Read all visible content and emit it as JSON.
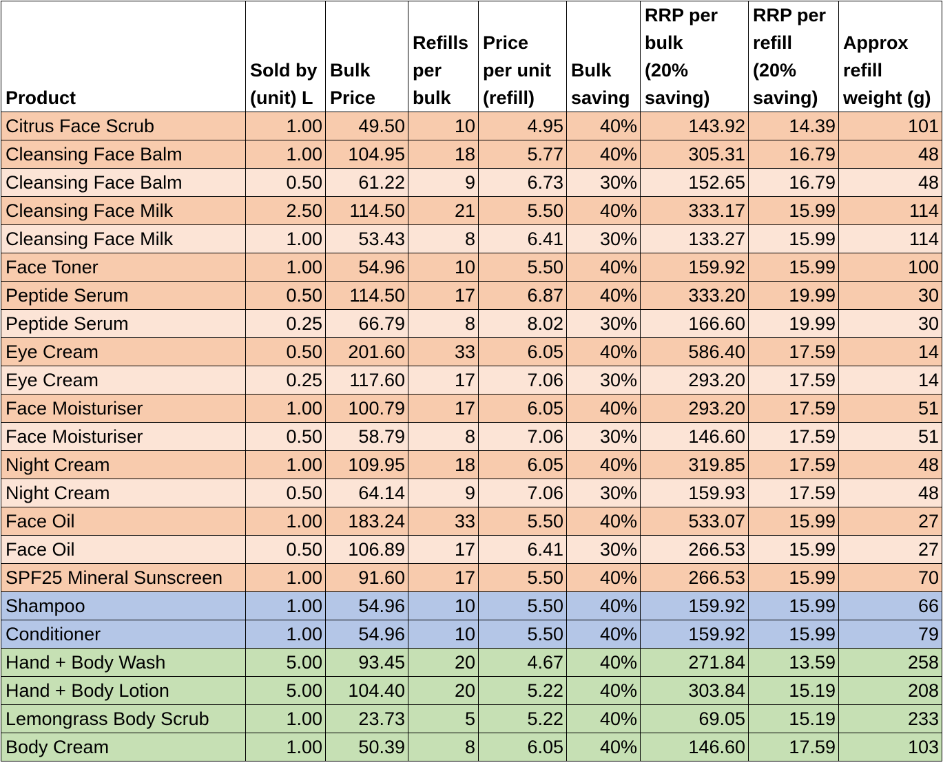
{
  "table": {
    "header": [
      "Product",
      "Sold by\n(unit) L",
      "Bulk\nPrice",
      "Refills\nper\nbulk",
      "Price\nper unit\n(refill)",
      "Bulk\nsaving",
      "RRP per\nbulk\n(20%\nsaving)",
      "RRP per\nrefill\n(20%\nsaving)",
      "Approx\nrefill\nweight (g)"
    ],
    "rows": [
      [
        "Citrus Face Scrub",
        "1.00",
        "49.50",
        "10",
        "4.95",
        "40%",
        "143.92",
        "14.39",
        "101"
      ],
      [
        "Cleansing Face Balm",
        "1.00",
        "104.95",
        "18",
        "5.77",
        "40%",
        "305.31",
        "16.79",
        "48"
      ],
      [
        "Cleansing Face Balm",
        "0.50",
        "61.22",
        "9",
        "6.73",
        "30%",
        "152.65",
        "16.79",
        "48"
      ],
      [
        "Cleansing Face Milk",
        "2.50",
        "114.50",
        "21",
        "5.50",
        "40%",
        "333.17",
        "15.99",
        "114"
      ],
      [
        "Cleansing Face Milk",
        "1.00",
        "53.43",
        "8",
        "6.41",
        "30%",
        "133.27",
        "15.99",
        "114"
      ],
      [
        "Face Toner",
        "1.00",
        "54.96",
        "10",
        "5.50",
        "40%",
        "159.92",
        "15.99",
        "100"
      ],
      [
        "Peptide Serum",
        "0.50",
        "114.50",
        "17",
        "6.87",
        "40%",
        "333.20",
        "19.99",
        "30"
      ],
      [
        "Peptide Serum",
        "0.25",
        "66.79",
        "8",
        "8.02",
        "30%",
        "166.60",
        "19.99",
        "30"
      ],
      [
        "Eye Cream",
        "0.50",
        "201.60",
        "33",
        "6.05",
        "40%",
        "586.40",
        "17.59",
        "14"
      ],
      [
        "Eye Cream",
        "0.25",
        "117.60",
        "17",
        "7.06",
        "30%",
        "293.20",
        "17.59",
        "14"
      ],
      [
        "Face Moisturiser",
        "1.00",
        "100.79",
        "17",
        "6.05",
        "40%",
        "293.20",
        "17.59",
        "51"
      ],
      [
        "Face Moisturiser",
        "0.50",
        "58.79",
        "8",
        "7.06",
        "30%",
        "146.60",
        "17.59",
        "51"
      ],
      [
        "Night Cream",
        "1.00",
        "109.95",
        "18",
        "6.05",
        "40%",
        "319.85",
        "17.59",
        "48"
      ],
      [
        "Night Cream",
        "0.50",
        "64.14",
        "9",
        "7.06",
        "30%",
        "159.93",
        "17.59",
        "48"
      ],
      [
        "Face Oil",
        "1.00",
        "183.24",
        "33",
        "5.50",
        "40%",
        "533.07",
        "15.99",
        "27"
      ],
      [
        "Face Oil",
        "0.50",
        "106.89",
        "17",
        "6.41",
        "30%",
        "266.53",
        "15.99",
        "27"
      ],
      [
        "SPF25 Mineral Sunscreen",
        "1.00",
        "91.60",
        "17",
        "5.50",
        "40%",
        "266.53",
        "15.99",
        "70"
      ],
      [
        "Shampoo",
        "1.00",
        "54.96",
        "10",
        "5.50",
        "40%",
        "159.92",
        "15.99",
        "66"
      ],
      [
        "Conditioner",
        "1.00",
        "54.96",
        "10",
        "5.50",
        "40%",
        "159.92",
        "15.99",
        "79"
      ],
      [
        "Hand + Body Wash",
        "5.00",
        "93.45",
        "20",
        "4.67",
        "40%",
        "271.84",
        "13.59",
        "258"
      ],
      [
        "Hand + Body Lotion",
        "5.00",
        "104.40",
        "20",
        "5.22",
        "40%",
        "303.84",
        "15.19",
        "208"
      ],
      [
        "Lemongrass Body Scrub",
        "1.00",
        "23.73",
        "5",
        "5.22",
        "40%",
        "69.05",
        "15.19",
        "233"
      ],
      [
        "Body Cream",
        "1.00",
        "50.39",
        "8",
        "6.05",
        "40%",
        "146.60",
        "17.59",
        "103"
      ]
    ]
  }
}
